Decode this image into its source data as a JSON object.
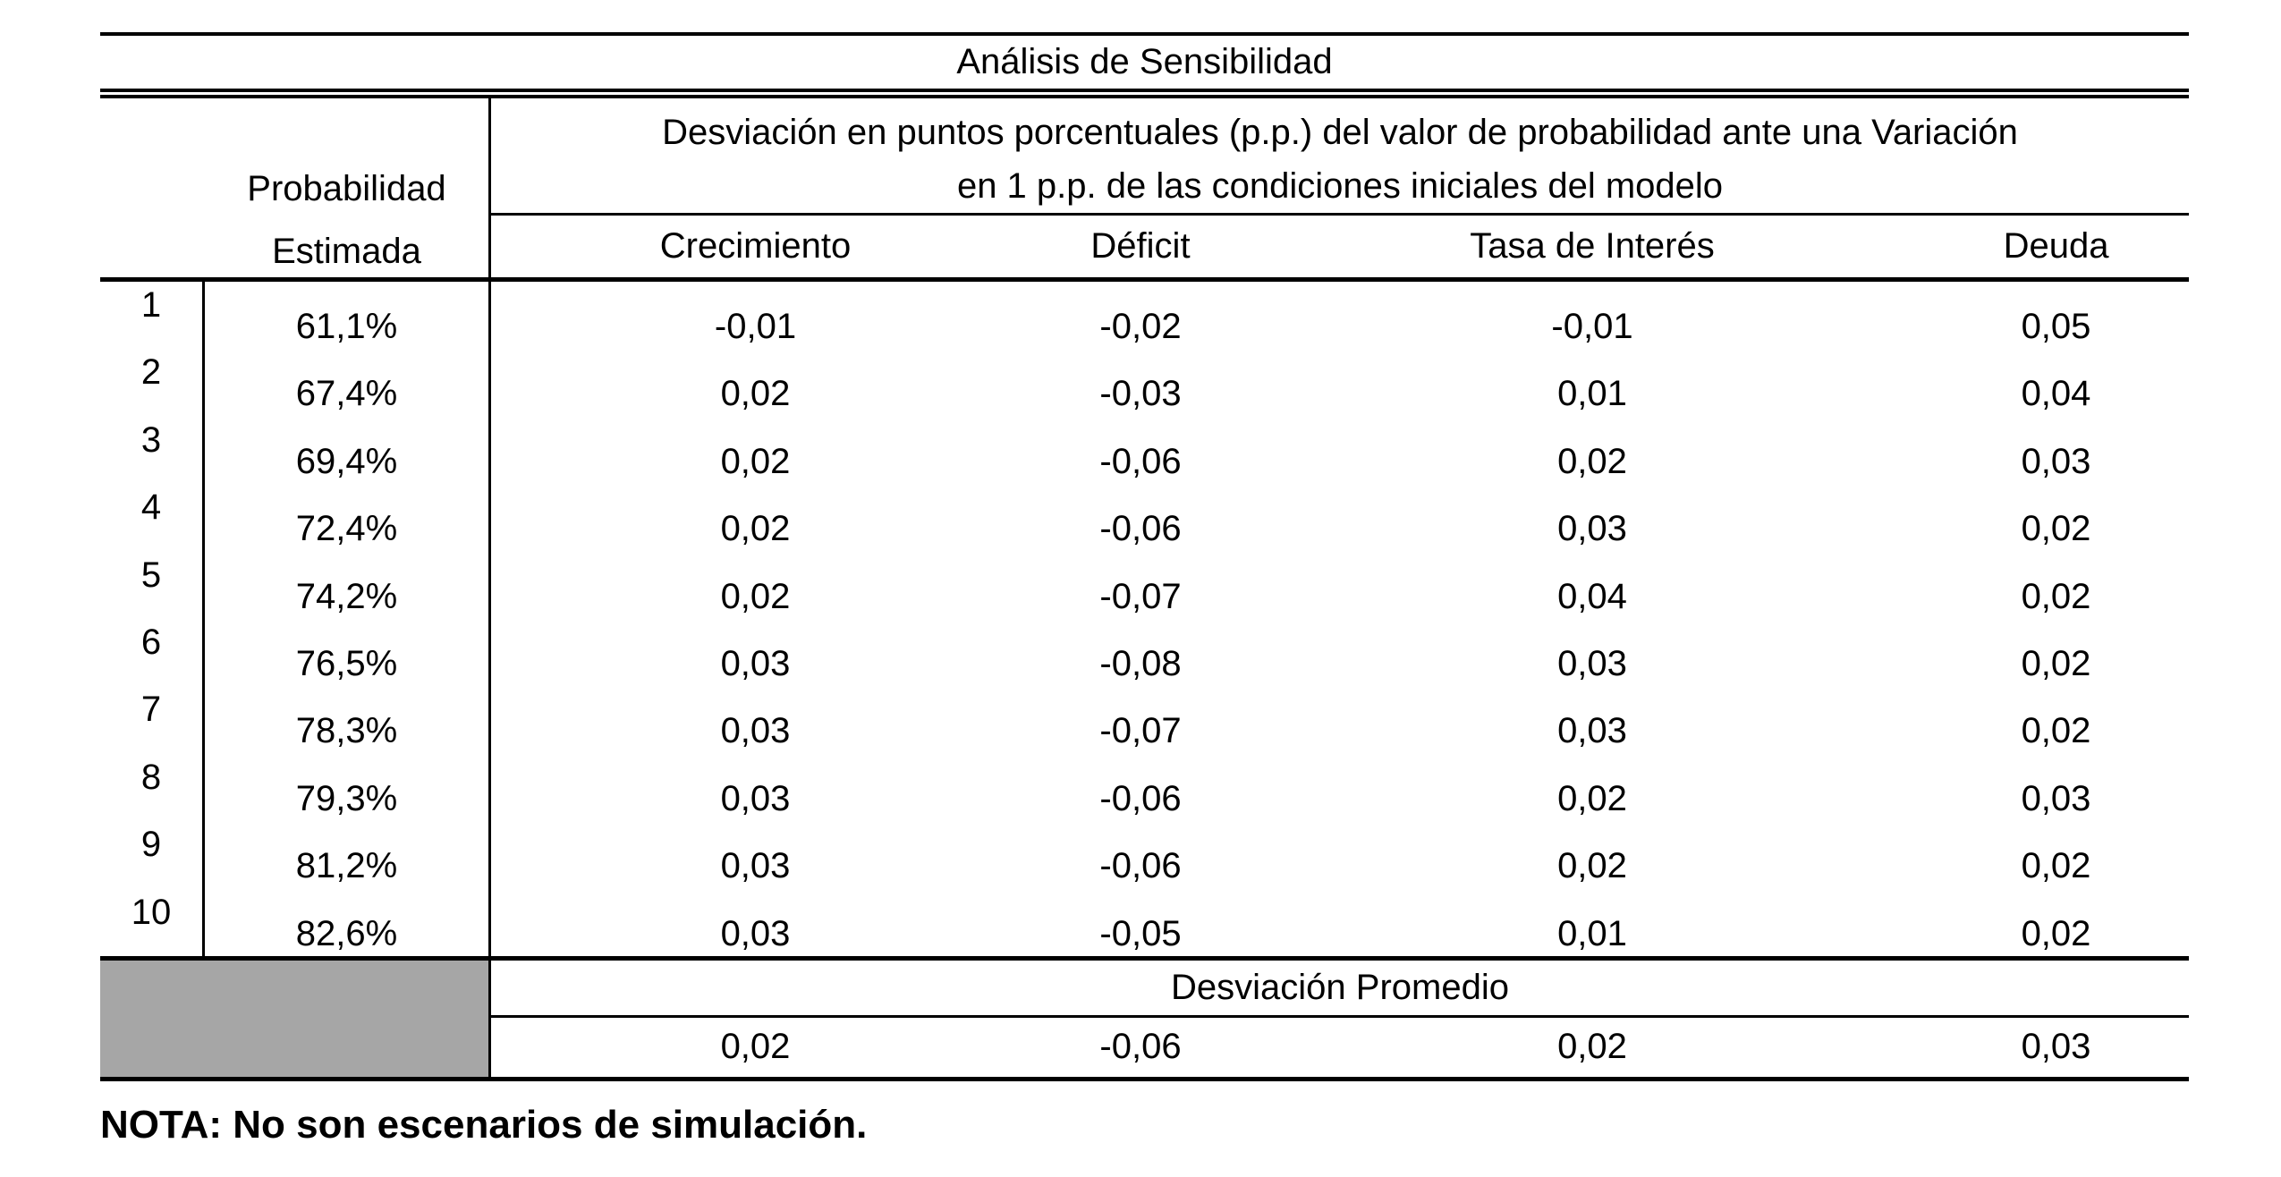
{
  "title": "Análisis de Sensibilidad",
  "colors": {
    "background": "#ffffff",
    "border": "#000000",
    "shaded_cell": "#a6a6a6"
  },
  "table": {
    "left_header": {
      "line1": "Probabilidad",
      "line2": "Estimada"
    },
    "span_header": {
      "line1": "Desviación en puntos porcentuales (p.p.) del valor de probabilidad ante una Variación",
      "line2": "en 1 p.p. de las condiciones iniciales del modelo"
    },
    "columns": [
      "Crecimiento",
      "Déficit",
      "Tasa de Interés",
      "Deuda"
    ],
    "rows": [
      {
        "num": "1",
        "prob": "61,1%",
        "crecimiento": "-0,01",
        "deficit": "-0,02",
        "tasa": "-0,01",
        "deuda": "0,05"
      },
      {
        "num": "2",
        "prob": "67,4%",
        "crecimiento": "0,02",
        "deficit": "-0,03",
        "tasa": "0,01",
        "deuda": "0,04"
      },
      {
        "num": "3",
        "prob": "69,4%",
        "crecimiento": "0,02",
        "deficit": "-0,06",
        "tasa": "0,02",
        "deuda": "0,03"
      },
      {
        "num": "4",
        "prob": "72,4%",
        "crecimiento": "0,02",
        "deficit": "-0,06",
        "tasa": "0,03",
        "deuda": "0,02"
      },
      {
        "num": "5",
        "prob": "74,2%",
        "crecimiento": "0,02",
        "deficit": "-0,07",
        "tasa": "0,04",
        "deuda": "0,02"
      },
      {
        "num": "6",
        "prob": "76,5%",
        "crecimiento": "0,03",
        "deficit": "-0,08",
        "tasa": "0,03",
        "deuda": "0,02"
      },
      {
        "num": "7",
        "prob": "78,3%",
        "crecimiento": "0,03",
        "deficit": "-0,07",
        "tasa": "0,03",
        "deuda": "0,02"
      },
      {
        "num": "8",
        "prob": "79,3%",
        "crecimiento": "0,03",
        "deficit": "-0,06",
        "tasa": "0,02",
        "deuda": "0,03"
      },
      {
        "num": "9",
        "prob": "81,2%",
        "crecimiento": "0,03",
        "deficit": "-0,06",
        "tasa": "0,02",
        "deuda": "0,02"
      },
      {
        "num": "10",
        "prob": "82,6%",
        "crecimiento": "0,03",
        "deficit": "-0,05",
        "tasa": "0,01",
        "deuda": "0,02"
      }
    ],
    "footer": {
      "label": "Desviación Promedio",
      "values": [
        "0,02",
        "-0,06",
        "0,02",
        "0,03"
      ]
    }
  },
  "note": "NOTA: No son escenarios de simulación.",
  "chart_data": {
    "type": "table",
    "title": "Análisis de Sensibilidad",
    "columns": [
      "Probabilidad Estimada",
      "Crecimiento",
      "Déficit",
      "Tasa de Interés",
      "Deuda"
    ],
    "probabilidad_estimada_pct": [
      61.1,
      67.4,
      69.4,
      72.4,
      74.2,
      76.5,
      78.3,
      79.3,
      81.2,
      82.6
    ],
    "series": [
      {
        "name": "Crecimiento",
        "values": [
          -0.01,
          0.02,
          0.02,
          0.02,
          0.02,
          0.03,
          0.03,
          0.03,
          0.03,
          0.03
        ]
      },
      {
        "name": "Déficit",
        "values": [
          -0.02,
          -0.03,
          -0.06,
          -0.06,
          -0.07,
          -0.08,
          -0.07,
          -0.06,
          -0.06,
          -0.05
        ]
      },
      {
        "name": "Tasa de Interés",
        "values": [
          -0.01,
          0.01,
          0.02,
          0.03,
          0.04,
          0.03,
          0.03,
          0.02,
          0.02,
          0.01
        ]
      },
      {
        "name": "Deuda",
        "values": [
          0.05,
          0.04,
          0.03,
          0.02,
          0.02,
          0.02,
          0.02,
          0.03,
          0.02,
          0.02
        ]
      }
    ],
    "averages": {
      "Crecimiento": 0.02,
      "Déficit": -0.06,
      "Tasa de Interés": 0.02,
      "Deuda": 0.03
    }
  }
}
